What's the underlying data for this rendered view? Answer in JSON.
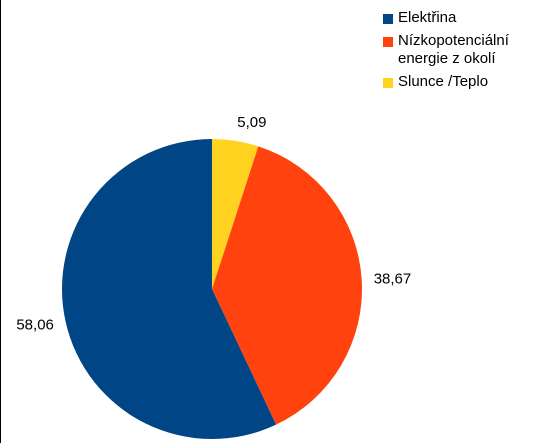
{
  "chart_data": {
    "type": "pie",
    "title": "",
    "categories": [
      "Elektřina",
      "Nízkopotenciální\nenergie z okolí",
      "Slunce /Teplo"
    ],
    "values": [
      58.06,
      38.67,
      5.09
    ],
    "data_labels": [
      "58,06",
      "38,67",
      "5,09"
    ],
    "colors": [
      "#004586",
      "#ff420e",
      "#ffd320"
    ],
    "legend_position": "top-right",
    "start_angle": "12 o'clock, clockwise, starting with Slunce /Teplo"
  }
}
